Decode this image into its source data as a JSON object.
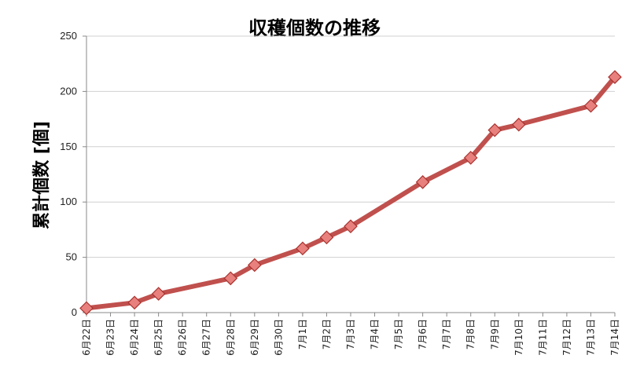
{
  "chart_data": {
    "type": "line",
    "title": "収穫個数の推移",
    "xlabel": "",
    "ylabel": "累計個数 [個]",
    "categories": [
      "6月22日",
      "6月23日",
      "6月24日",
      "6月25日",
      "6月26日",
      "6月27日",
      "6月28日",
      "6月29日",
      "6月30日",
      "7月1日",
      "7月2日",
      "7月3日",
      "7月4日",
      "7月5日",
      "7月6日",
      "7月7日",
      "7月8日",
      "7月9日",
      "7月10日",
      "7月11日",
      "7月12日",
      "7月13日",
      "7月14日"
    ],
    "yticks": [
      0,
      50,
      100,
      150,
      200,
      250
    ],
    "ylim": [
      0,
      250
    ],
    "grid": true,
    "series": [
      {
        "points": [
          {
            "x": "6月22日",
            "y": 4
          },
          {
            "x": "6月24日",
            "y": 9
          },
          {
            "x": "6月25日",
            "y": 17
          },
          {
            "x": "6月28日",
            "y": 31
          },
          {
            "x": "6月29日",
            "y": 43
          },
          {
            "x": "7月1日",
            "y": 58
          },
          {
            "x": "7月2日",
            "y": 68
          },
          {
            "x": "7月3日",
            "y": 78
          },
          {
            "x": "7月6日",
            "y": 118
          },
          {
            "x": "7月8日",
            "y": 140
          },
          {
            "x": "7月9日",
            "y": 165
          },
          {
            "x": "7月10日",
            "y": 170
          },
          {
            "x": "7月13日",
            "y": 187
          },
          {
            "x": "7月14日",
            "y": 213
          }
        ]
      }
    ],
    "colors": {
      "line": "#c0504d",
      "marker_fill": "#e8807d",
      "marker_stroke": "#a8332f"
    }
  }
}
